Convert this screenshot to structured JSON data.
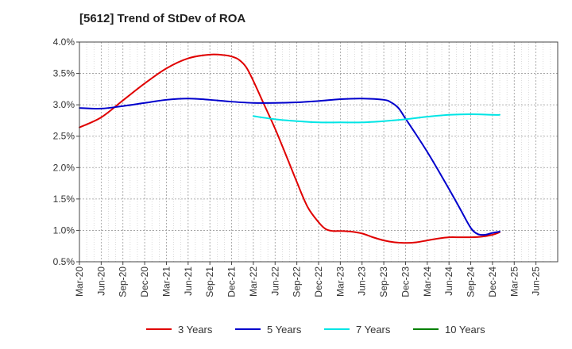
{
  "chart_data": {
    "type": "line",
    "title": "[5612]  Trend of StDev of ROA",
    "xlabel": "",
    "ylabel": "",
    "x_ticks": [
      "Mar-20",
      "Jun-20",
      "Sep-20",
      "Dec-20",
      "Mar-21",
      "Jun-21",
      "Sep-21",
      "Dec-21",
      "Mar-22",
      "Jun-22",
      "Sep-22",
      "Dec-22",
      "Mar-23",
      "Jun-23",
      "Sep-23",
      "Dec-23",
      "Mar-24",
      "Jun-24",
      "Sep-24",
      "Dec-24",
      "Mar-25",
      "Jun-25"
    ],
    "y_ticks": [
      "0.5%",
      "1.0%",
      "1.5%",
      "2.0%",
      "2.5%",
      "3.0%",
      "3.5%",
      "4.0%"
    ],
    "ylim": [
      0.5,
      4.0
    ],
    "grid": true,
    "legend_position": "bottom",
    "series": [
      {
        "name": "3 Years",
        "color": "#e00000",
        "points": [
          [
            0,
            2.64
          ],
          [
            1,
            2.8
          ],
          [
            2,
            3.07
          ],
          [
            3,
            3.34
          ],
          [
            4,
            3.58
          ],
          [
            5,
            3.74
          ],
          [
            6,
            3.8
          ],
          [
            6.7,
            3.79
          ],
          [
            7,
            3.77
          ],
          [
            7.33,
            3.72
          ],
          [
            7.67,
            3.6
          ],
          [
            8,
            3.38
          ],
          [
            8.5,
            3.0
          ],
          [
            9,
            2.62
          ],
          [
            9.5,
            2.2
          ],
          [
            10,
            1.77
          ],
          [
            10.5,
            1.37
          ],
          [
            11,
            1.13
          ],
          [
            11.33,
            1.02
          ],
          [
            11.67,
            0.99
          ],
          [
            12,
            0.99
          ],
          [
            12.5,
            0.98
          ],
          [
            13,
            0.95
          ],
          [
            13.5,
            0.89
          ],
          [
            14,
            0.84
          ],
          [
            14.5,
            0.81
          ],
          [
            15,
            0.8
          ],
          [
            15.5,
            0.81
          ],
          [
            16,
            0.84
          ],
          [
            16.5,
            0.87
          ],
          [
            17,
            0.89
          ],
          [
            17.5,
            0.89
          ],
          [
            18,
            0.89
          ],
          [
            18.5,
            0.9
          ],
          [
            19,
            0.93
          ],
          [
            19.33,
            0.97
          ]
        ]
      },
      {
        "name": "5 Years",
        "color": "#0000cc",
        "points": [
          [
            0,
            2.95
          ],
          [
            1,
            2.94
          ],
          [
            2,
            2.98
          ],
          [
            3,
            3.03
          ],
          [
            4,
            3.08
          ],
          [
            5,
            3.1
          ],
          [
            6,
            3.08
          ],
          [
            7,
            3.05
          ],
          [
            8,
            3.03
          ],
          [
            9,
            3.03
          ],
          [
            10,
            3.04
          ],
          [
            11,
            3.06
          ],
          [
            12,
            3.09
          ],
          [
            13,
            3.1
          ],
          [
            14,
            3.08
          ],
          [
            14.33,
            3.04
          ],
          [
            14.67,
            2.95
          ],
          [
            15,
            2.78
          ],
          [
            15.5,
            2.52
          ],
          [
            16,
            2.25
          ],
          [
            16.5,
            1.96
          ],
          [
            17,
            1.66
          ],
          [
            17.5,
            1.35
          ],
          [
            18,
            1.04
          ],
          [
            18.33,
            0.94
          ],
          [
            18.67,
            0.93
          ],
          [
            19,
            0.96
          ],
          [
            19.33,
            0.98
          ]
        ]
      },
      {
        "name": "7 Years",
        "color": "#00e5e5",
        "points": [
          [
            8,
            2.82
          ],
          [
            9,
            2.77
          ],
          [
            10,
            2.74
          ],
          [
            11,
            2.72
          ],
          [
            12,
            2.72
          ],
          [
            13,
            2.72
          ],
          [
            14,
            2.74
          ],
          [
            15,
            2.77
          ],
          [
            16,
            2.81
          ],
          [
            17,
            2.84
          ],
          [
            18,
            2.85
          ],
          [
            19,
            2.84
          ],
          [
            19.33,
            2.84
          ]
        ]
      },
      {
        "name": "10 Years",
        "color": "#008000",
        "points": []
      }
    ]
  }
}
